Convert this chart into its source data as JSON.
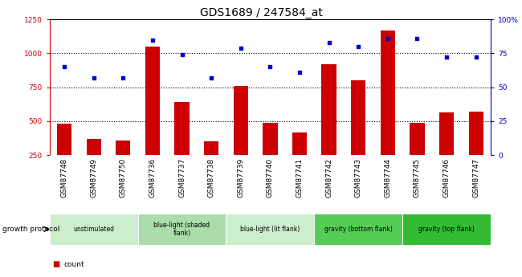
{
  "title": "GDS1689 / 247584_at",
  "samples": [
    "GSM87748",
    "GSM87749",
    "GSM87750",
    "GSM87736",
    "GSM87737",
    "GSM87738",
    "GSM87739",
    "GSM87740",
    "GSM87741",
    "GSM87742",
    "GSM87743",
    "GSM87744",
    "GSM87745",
    "GSM87746",
    "GSM87747"
  ],
  "counts": [
    480,
    370,
    360,
    1050,
    640,
    350,
    760,
    490,
    415,
    920,
    800,
    1170,
    490,
    565,
    570
  ],
  "percentiles": [
    65,
    57,
    57,
    85,
    74,
    57,
    79,
    65,
    61,
    83,
    80,
    86,
    86,
    72,
    72
  ],
  "groups": [
    {
      "label": "unstimulated",
      "start": 0,
      "end": 3,
      "color": "#cceecc"
    },
    {
      "label": "blue-light (shaded\nflank)",
      "start": 3,
      "end": 6,
      "color": "#aaddaa"
    },
    {
      "label": "blue-light (lit flank)",
      "start": 6,
      "end": 9,
      "color": "#cceecc"
    },
    {
      "label": "gravity (bottom flank)",
      "start": 9,
      "end": 12,
      "color": "#55cc55"
    },
    {
      "label": "gravity (top flank)",
      "start": 12,
      "end": 15,
      "color": "#33bb33"
    }
  ],
  "bar_color": "#cc0000",
  "dot_color": "#0000cc",
  "left_ylim": [
    250,
    1250
  ],
  "right_ylim": [
    0,
    100
  ],
  "left_yticks": [
    250,
    500,
    750,
    1000,
    1250
  ],
  "right_yticks": [
    0,
    25,
    50,
    75,
    100
  ],
  "right_yticklabels": [
    "0",
    "25",
    "50",
    "75",
    "100%"
  ],
  "grid_values": [
    500,
    750,
    1000
  ],
  "title_fontsize": 10,
  "tick_fontsize": 6.5,
  "bar_width": 0.5,
  "plot_bg": "#ffffff",
  "xtick_bg": "#c8c8c8"
}
